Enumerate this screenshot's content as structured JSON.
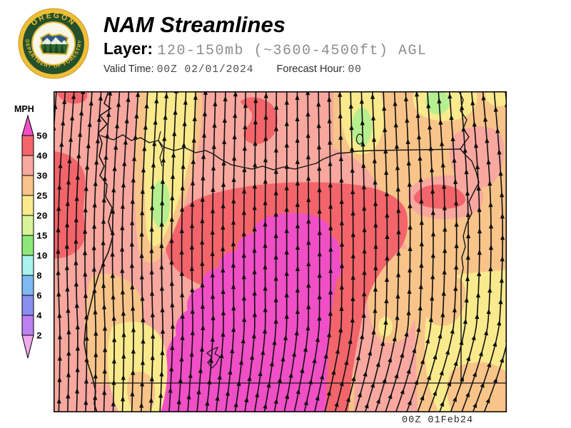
{
  "header": {
    "title": "NAM Streamlines",
    "layer_label": "Layer:",
    "layer_value": "120-150mb (~3600-4500ft) AGL",
    "valid_time_label": "Valid Time:",
    "valid_time_value": "00Z 02/01/2024",
    "forecast_hour_label": "Forecast Hour:",
    "forecast_hour_value": "00"
  },
  "logo": {
    "top_text": "OREGON",
    "bottom_text": "DEPARTMENT OF FORESTRY",
    "colors": {
      "gold": "#F0BE35",
      "green": "#24512B",
      "sky": "#2B5B82",
      "tree": "#1C4423"
    }
  },
  "scale": {
    "unit_label": "MPH",
    "ticks": [
      "50",
      "40",
      "30",
      "25",
      "20",
      "15",
      "10",
      "8",
      "6",
      "4",
      "2"
    ],
    "segment_colors_top_to_bottom": [
      "#F3656B",
      "#F8A89F",
      "#F8C489",
      "#F9EA8D",
      "#D9F39A",
      "#8DE977",
      "#A9F2EE",
      "#7FB9F3",
      "#8A8EEF",
      "#BC80F0"
    ],
    "above_max_color": "#F04FC6",
    "below_min_color": "#EDAAEC"
  },
  "map": {
    "timestamp": "00Z 01Feb24",
    "fill_colors": {
      "mph_50_plus": "#F04FC6",
      "mph_40_50": "#F3656B",
      "mph_30_40": "#F8A89F",
      "mph_25_30": "#F8C489",
      "mph_20_25": "#F9EA8D",
      "mph_15_20": "#B5EF90"
    },
    "stream_color": "#101010",
    "border_color": "#000000"
  }
}
